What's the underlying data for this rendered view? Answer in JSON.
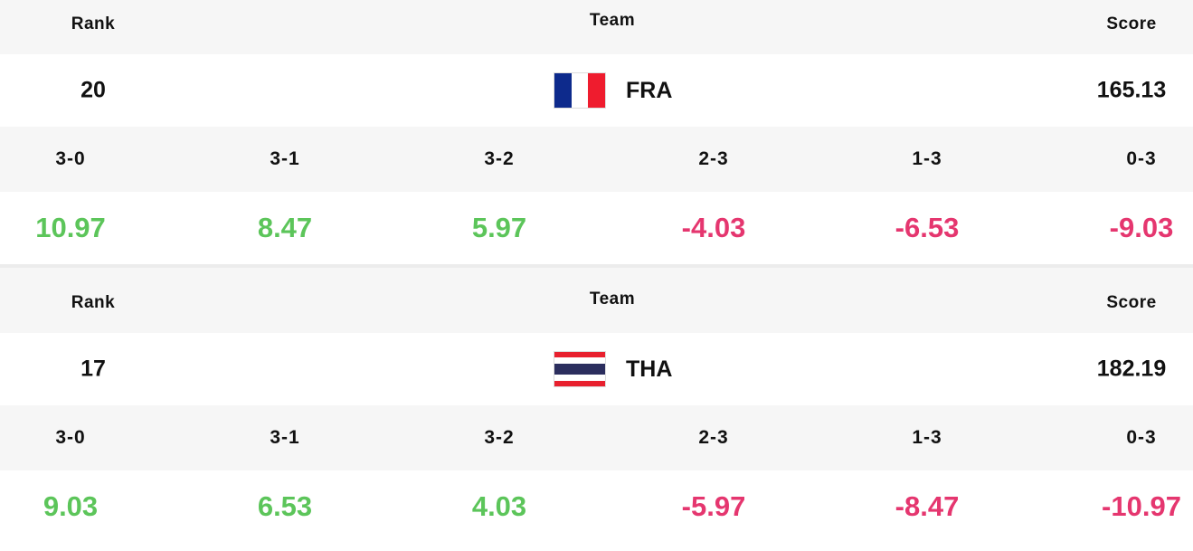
{
  "headers": {
    "rank": "Rank",
    "team": "Team",
    "score": "Score"
  },
  "score_columns": [
    "3-0",
    "3-1",
    "3-2",
    "2-3",
    "1-3",
    "0-3"
  ],
  "teams": [
    {
      "rank": "20",
      "code": "FRA",
      "flag_icon": "france-flag-icon",
      "score": "165.13",
      "odds": [
        "10.97",
        "8.47",
        "5.97",
        "-4.03",
        "-6.53",
        "-9.03"
      ]
    },
    {
      "rank": "17",
      "code": "THA",
      "flag_icon": "thailand-flag-icon",
      "score": "182.19",
      "odds": [
        "9.03",
        "6.53",
        "4.03",
        "-5.97",
        "-8.47",
        "-10.97"
      ]
    }
  ],
  "colors": {
    "positive": "#5cc55a",
    "negative": "#e5366f"
  }
}
